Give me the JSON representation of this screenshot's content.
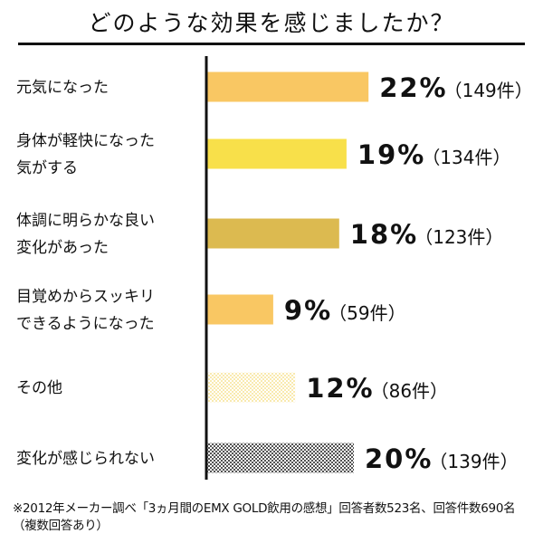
{
  "title": "どのような効果を感じましたか？",
  "footnote": "※2012年メーカー調べ「3ヵ月間のEMX GOLD飲用の感想」回答者数523名、回答件数690名（複数回答あり）",
  "colors": {
    "bar_orange": "#f9c763",
    "bar_yellow": "#f8e04a",
    "bar_olive": "#dcba50",
    "pattern_light": "#f5dc76",
    "pattern_dark": "#444444",
    "axis": "#111111"
  },
  "chart_data": {
    "type": "bar",
    "orientation": "horizontal",
    "unit": "%",
    "xlim": [
      0,
      25
    ],
    "categories": [
      [
        "元気になった"
      ],
      [
        "身体が軽快になった",
        "気がする"
      ],
      [
        "体調に明らかな良い",
        "変化があった"
      ],
      [
        "目覚めからスッキリ",
        "できるようになった"
      ],
      [
        "その他"
      ],
      [
        "変化が感じられない"
      ]
    ],
    "values": [
      22,
      19,
      18,
      9,
      12,
      20
    ],
    "value_labels": [
      "22%",
      "19%",
      "18%",
      "9%",
      "12%",
      "20%"
    ],
    "count_labels": [
      "（149件）",
      "（134件）",
      "（123件）",
      "（59件）",
      "（86件）",
      "（139件）"
    ],
    "fills": [
      "bar_orange",
      "bar_yellow",
      "bar_olive",
      "bar_orange",
      "pattern_light",
      "pattern_dark"
    ]
  }
}
